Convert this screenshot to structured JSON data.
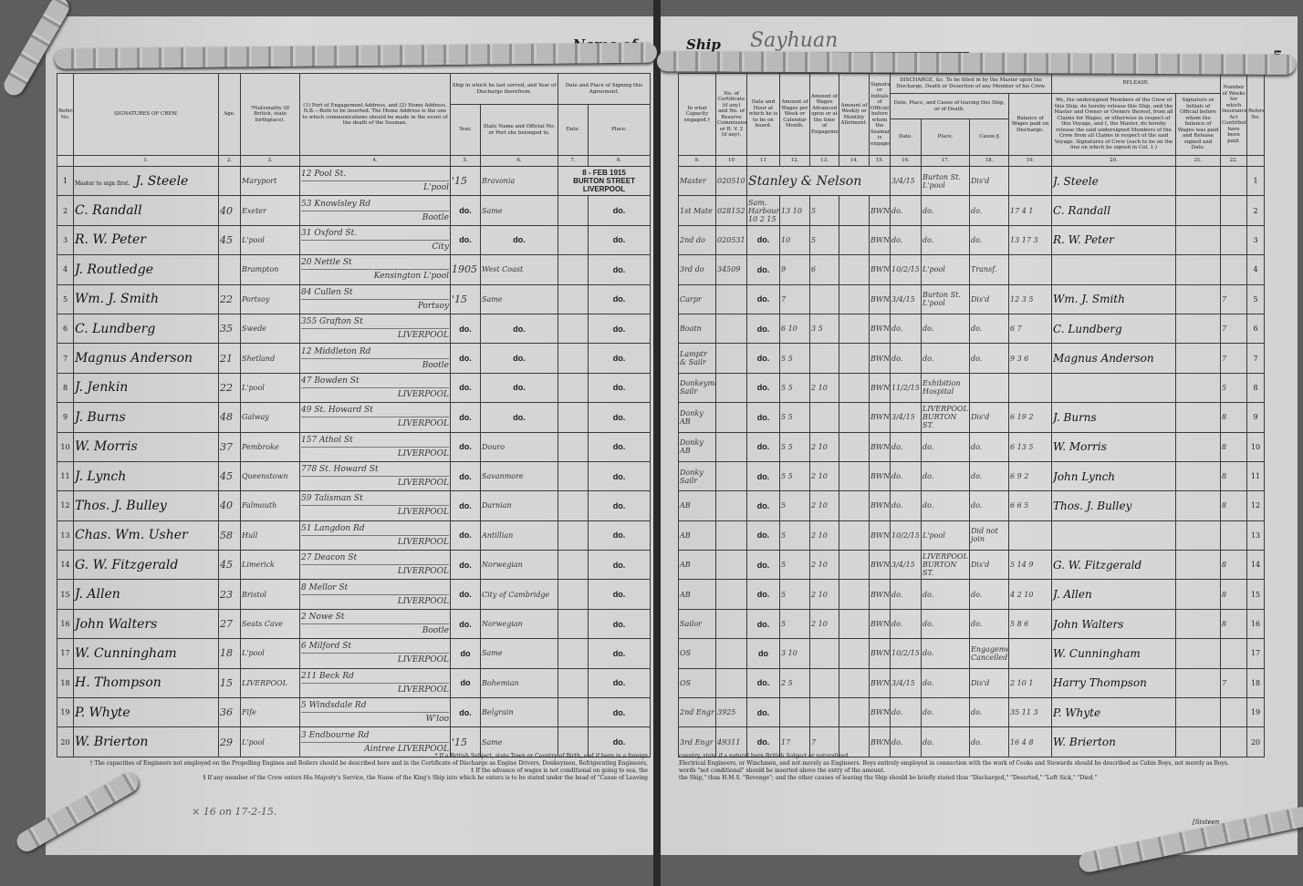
{
  "header": {
    "left_page_number": "4",
    "right_page_number": "5",
    "name_of_label": "Name of",
    "ship_label": "Ship",
    "ship_name": "Sayhuan"
  },
  "left_columns": {
    "ref": "Reference No.",
    "signatures": "SIGNATURES OF CREW.",
    "age": "Age.",
    "nationality": "*Nationality (If British, state birthplace).",
    "address": "(1) Port of Engagement Address, and (2) Home Address. N.B.—Both to be inserted. The Home Address is the one to which communications should be made in the event of the death of the Seaman.",
    "last_ship_group": "Ship in which he last served, and Year of Discharge therefrom.",
    "year": "Year.",
    "ship": "State Name and Official No. or Port she belonged to.",
    "signing_group": "Date and Place of Signing this Agreement.",
    "date": "Date.",
    "place": "Place.",
    "numbers": [
      "1.",
      "2.",
      "3.",
      "4.",
      "5.",
      "6.",
      "7.",
      "8."
    ]
  },
  "right_columns": {
    "capacity": "In what Capacity engaged.†",
    "certificate": "No. of Certificate (if any) and No. of Reserve Commission or R. V. 2 (if any).",
    "on_board": "Date and Hour at which he is to be on board.",
    "wages": "Amount of Wages per Week or Calendar Month.",
    "advance": "Amount of Wages Advanced upon or at the time of Engagement.‡",
    "allotment": "Amount of Weekly or Monthly Allotment.",
    "official": "Signature or Initials of Official before whom the Seaman is engaged.",
    "discharge_group": "DISCHARGE, &c. To be filled in by the Master upon the Discharge, Death or Desertion of any Member of his Crew.",
    "leaving_group": "Date, Place, and Cause of leaving this Ship, or of Death.",
    "leave_date": "Date.",
    "leave_place": "Place.",
    "leave_cause": "Cause.§",
    "balance": "Balance of Wages paid on Discharge.",
    "release_group": "RELEASE.",
    "release": "We, the undersigned Members of the Crew of this Ship, do hereby release this Ship, and the Master and Owner or Owners thereof, from all Claims for Wages, or otherwise in respect of this Voyage, and I, the Master, do hereby release the said undersigned Members of the Crew from all Claims in respect of the said Voyage. Signatures of Crew (each to be on the line on which he signed in Col. 1.)",
    "release_official": "Signature or Initials of Official before whom the balance of Wages was paid and Release signed and Date.",
    "weeks": "Number of Weeks for which Insurance Act Contributions have been paid.",
    "ref": "Reference No.",
    "numbers": [
      "9.",
      "10",
      "11",
      "12.",
      "13.",
      "14.",
      "15.",
      "16.",
      "17.",
      "18.",
      "19.",
      "20.",
      "21.",
      "22."
    ]
  },
  "master_note": "Master to sign first.",
  "owners_note": "Stanley & Nelson",
  "crew_left": [
    {
      "ref": "1",
      "signature": "J. Steele",
      "age": "",
      "nationality": "Maryport",
      "address1": "12 Pool St.",
      "address2": "L'pool",
      "year": "'15",
      "ship": "Bravonia",
      "date": "8 - FEB 1915",
      "place": "BURTON STREET LIVERPOOL"
    },
    {
      "ref": "2",
      "signature": "C. Randall",
      "age": "40",
      "nationality": "Exeter",
      "address1": "53 Knowlsley Rd",
      "address2": "Bootle",
      "year": "do.",
      "ship": "Same",
      "date": "",
      "place": "do."
    },
    {
      "ref": "3",
      "signature": "R. W. Peter",
      "age": "45",
      "nationality": "L'pool",
      "address1": "31 Oxford St.",
      "address2": "City",
      "year": "do.",
      "ship": "do.",
      "date": "",
      "place": "do."
    },
    {
      "ref": "4",
      "signature": "J. Routledge",
      "age": "",
      "nationality": "Brampton",
      "address1": "20 Nettle St",
      "address2": "Kensington L'pool",
      "year": "1905",
      "ship": "West Coast",
      "date": "",
      "place": "do."
    },
    {
      "ref": "5",
      "signature": "Wm. J. Smith",
      "age": "22",
      "nationality": "Portsoy",
      "address1": "84 Cullen St",
      "address2": "Portsoy",
      "year": "'15",
      "ship": "Same",
      "date": "",
      "place": "do."
    },
    {
      "ref": "6",
      "signature": "C. Lundberg",
      "age": "35",
      "nationality": "Swede",
      "address1": "355 Grafton St",
      "address2": "LIVERPOOL",
      "year": "do.",
      "ship": "do.",
      "date": "",
      "place": "do."
    },
    {
      "ref": "7",
      "signature": "Magnus Anderson",
      "age": "21",
      "nationality": "Shetland",
      "address1": "12 Middleton Rd",
      "address2": "Bootle",
      "year": "do.",
      "ship": "do.",
      "date": "",
      "place": "do."
    },
    {
      "ref": "8",
      "signature": "J. Jenkin",
      "age": "22",
      "nationality": "L'pool",
      "address1": "47 Bowden St",
      "address2": "LIVERPOOL",
      "year": "do.",
      "ship": "do.",
      "date": "",
      "place": "do."
    },
    {
      "ref": "9",
      "signature": "J. Burns",
      "age": "48",
      "nationality": "Galway",
      "address1": "49 St. Howard St",
      "address2": "LIVERPOOL",
      "year": "do.",
      "ship": "do.",
      "date": "",
      "place": "do."
    },
    {
      "ref": "10",
      "signature": "W. Morris",
      "age": "37",
      "nationality": "Pembroke",
      "address1": "157 Athol St",
      "address2": "LIVERPOOL",
      "year": "do.",
      "ship": "Douro",
      "date": "",
      "place": "do."
    },
    {
      "ref": "11",
      "signature": "J. Lynch",
      "age": "45",
      "nationality": "Queenstown",
      "address1": "778 St. Howard St",
      "address2": "LIVERPOOL",
      "year": "do.",
      "ship": "Savanmore",
      "date": "",
      "place": "do."
    },
    {
      "ref": "12",
      "signature": "Thos. J. Bulley",
      "age": "40",
      "nationality": "Falmouth",
      "address1": "59 Talisman St",
      "address2": "LIVERPOOL",
      "year": "do.",
      "ship": "Darnian",
      "date": "",
      "place": "do."
    },
    {
      "ref": "13",
      "signature": "Chas. Wm. Usher",
      "age": "58",
      "nationality": "Hull",
      "address1": "51 Langdon Rd",
      "address2": "LIVERPOOL",
      "year": "do.",
      "ship": "Antillian",
      "date": "",
      "place": "do."
    },
    {
      "ref": "14",
      "signature": "G. W. Fitzgerald",
      "age": "45",
      "nationality": "Limerick",
      "address1": "27 Deacon St",
      "address2": "LIVERPOOL",
      "year": "do.",
      "ship": "Norwegian",
      "date": "",
      "place": "do."
    },
    {
      "ref": "15",
      "signature": "J. Allen",
      "age": "23",
      "nationality": "Bristol",
      "address1": "8 Mellor St",
      "address2": "LIVERPOOL",
      "year": "do.",
      "ship": "City of Cambridge",
      "date": "",
      "place": "do."
    },
    {
      "ref": "16",
      "signature": "John Walters",
      "age": "27",
      "nationality": "Seats Cave",
      "address1": "2 Nowe St",
      "address2": "Bootle",
      "year": "do.",
      "ship": "Norwegian",
      "date": "",
      "place": "do."
    },
    {
      "ref": "17",
      "signature": "W. Cunningham",
      "age": "18",
      "nationality": "L'pool",
      "address1": "6 Milford St",
      "address2": "LIVERPOOL",
      "year": "do",
      "ship": "Same",
      "date": "",
      "place": "do."
    },
    {
      "ref": "18",
      "signature": "H. Thompson",
      "age": "15",
      "nationality": "LIVERPOOL",
      "address1": "211 Beck Rd",
      "address2": "LIVERPOOL",
      "year": "do",
      "ship": "Bohemian",
      "date": "",
      "place": "do."
    },
    {
      "ref": "19",
      "signature": "P. Whyte",
      "age": "36",
      "nationality": "Fife",
      "address1": "5 Windsdale Rd",
      "address2": "W'loo",
      "year": "do.",
      "ship": "Belgrain",
      "date": "",
      "place": "do."
    },
    {
      "ref": "20",
      "signature": "W. Brierton",
      "age": "29",
      "nationality": "L'pool",
      "address1": "3 Endbourne Rd",
      "address2": "Aintree LIVERPOOL",
      "year": "'15",
      "ship": "Same",
      "date": "",
      "place": "do."
    }
  ],
  "crew_right": [
    {
      "capacity": "Master",
      "cert": "020510",
      "on_board": "",
      "wages": "",
      "advance": "",
      "allotment": "",
      "official": "",
      "leave_date": "3/4/15",
      "leave_place": "Burton St. L'pool",
      "cause": "Dis'd",
      "balance": "",
      "release_sig": "J. Steele",
      "release_official": "",
      "weeks": "",
      "ref": "1"
    },
    {
      "capacity": "1st Mate",
      "cert": "028152",
      "on_board": "Sam. Harbour 10 2 15",
      "wages": "13 10",
      "advance": "5",
      "allotment": "",
      "official": "BWN",
      "leave_date": "do.",
      "leave_place": "do.",
      "cause": "do.",
      "balance": "17 4 1",
      "release_sig": "C. Randall",
      "release_official": "",
      "weeks": "",
      "ref": "2"
    },
    {
      "capacity": "2nd do",
      "cert": "020531",
      "on_board": "do.",
      "wages": "10",
      "advance": "5",
      "allotment": "",
      "official": "BWN",
      "leave_date": "do.",
      "leave_place": "do.",
      "cause": "do.",
      "balance": "13 17 3",
      "release_sig": "R. W. Peter",
      "release_official": "",
      "weeks": "",
      "ref": "3"
    },
    {
      "capacity": "3rd do",
      "cert": "34509",
      "on_board": "do.",
      "wages": "9",
      "advance": "6",
      "allotment": "",
      "official": "BWN",
      "leave_date": "10/2/15",
      "leave_place": "L'pool",
      "cause": "Transf.",
      "balance": "",
      "release_sig": "",
      "release_official": "",
      "weeks": "",
      "ref": "4"
    },
    {
      "capacity": "Carpr",
      "cert": "",
      "on_board": "do.",
      "wages": "7",
      "advance": "",
      "allotment": "",
      "official": "BWN",
      "leave_date": "3/4/15",
      "leave_place": "Burton St. L'pool",
      "cause": "Dis'd",
      "balance": "12 3 5",
      "release_sig": "Wm. J. Smith",
      "release_official": "",
      "weeks": "7",
      "ref": "5"
    },
    {
      "capacity": "Boatn",
      "cert": "",
      "on_board": "do.",
      "wages": "6 10",
      "advance": "3 5",
      "allotment": "",
      "official": "BWN",
      "leave_date": "do.",
      "leave_place": "do.",
      "cause": "do.",
      "balance": "6 7",
      "release_sig": "C. Lundberg",
      "release_official": "",
      "weeks": "7",
      "ref": "6"
    },
    {
      "capacity": "Lamptr & Sailr",
      "cert": "",
      "on_board": "do.",
      "wages": "5 5",
      "advance": "",
      "allotment": "",
      "official": "BWN",
      "leave_date": "do.",
      "leave_place": "do.",
      "cause": "do.",
      "balance": "9 3 6",
      "release_sig": "Magnus Anderson",
      "release_official": "",
      "weeks": "7",
      "ref": "7"
    },
    {
      "capacity": "Donkeyman Sailr",
      "cert": "",
      "on_board": "do.",
      "wages": "5 5",
      "advance": "2 10",
      "allotment": "",
      "official": "BWN",
      "leave_date": "11/2/15",
      "leave_place": "Exhibition Hospital",
      "cause": "",
      "balance": "",
      "release_sig": "",
      "release_official": "",
      "weeks": "5",
      "ref": "8"
    },
    {
      "capacity": "Donky AB",
      "cert": "",
      "on_board": "do.",
      "wages": "5 5",
      "advance": "",
      "allotment": "",
      "official": "BWN",
      "leave_date": "3/4/15",
      "leave_place": "LIVERPOOL BURTON ST.",
      "cause": "Dis'd",
      "balance": "6 19 2",
      "release_sig": "J. Burns",
      "release_official": "",
      "weeks": "8",
      "ref": "9"
    },
    {
      "capacity": "Donky AB",
      "cert": "",
      "on_board": "do.",
      "wages": "5 5",
      "advance": "2 10",
      "allotment": "",
      "official": "BWN",
      "leave_date": "do.",
      "leave_place": "do.",
      "cause": "do.",
      "balance": "6 13 5",
      "release_sig": "W. Morris",
      "release_official": "",
      "weeks": "8",
      "ref": "10"
    },
    {
      "capacity": "Donky Sailr",
      "cert": "",
      "on_board": "do.",
      "wages": "5 5",
      "advance": "2 10",
      "allotment": "",
      "official": "BWN",
      "leave_date": "do.",
      "leave_place": "do.",
      "cause": "do.",
      "balance": "6 9 2",
      "release_sig": "John Lynch",
      "release_official": "",
      "weeks": "8",
      "ref": "11"
    },
    {
      "capacity": "AB",
      "cert": "",
      "on_board": "do.",
      "wages": "5",
      "advance": "2 10",
      "allotment": "",
      "official": "BWN",
      "leave_date": "do.",
      "leave_place": "do.",
      "cause": "do.",
      "balance": "6 6 5",
      "release_sig": "Thos. J. Bulley",
      "release_official": "",
      "weeks": "8",
      "ref": "12"
    },
    {
      "capacity": "AB",
      "cert": "",
      "on_board": "do.",
      "wages": "5",
      "advance": "2 10",
      "allotment": "",
      "official": "BWN",
      "leave_date": "10/2/15",
      "leave_place": "L'pool",
      "cause": "Did not join",
      "balance": "",
      "release_sig": "",
      "release_official": "",
      "weeks": "",
      "ref": "13"
    },
    {
      "capacity": "AB",
      "cert": "",
      "on_board": "do.",
      "wages": "5",
      "advance": "2 10",
      "allotment": "",
      "official": "BWN",
      "leave_date": "3/4/15",
      "leave_place": "LIVERPOOL BURTON ST.",
      "cause": "Dis'd",
      "balance": "5 14 9",
      "release_sig": "G. W. Fitzgerald",
      "release_official": "",
      "weeks": "8",
      "ref": "14"
    },
    {
      "capacity": "AB",
      "cert": "",
      "on_board": "do.",
      "wages": "5",
      "advance": "2 10",
      "allotment": "",
      "official": "BWN",
      "leave_date": "do.",
      "leave_place": "do.",
      "cause": "do.",
      "balance": "4 2 10",
      "release_sig": "J. Allen",
      "release_official": "",
      "weeks": "8",
      "ref": "15"
    },
    {
      "capacity": "Sailor",
      "cert": "",
      "on_board": "do.",
      "wages": "5",
      "advance": "2 10",
      "allotment": "",
      "official": "BWN",
      "leave_date": "do.",
      "leave_place": "do.",
      "cause": "do.",
      "balance": "5 8 6",
      "release_sig": "John Walters",
      "release_official": "",
      "weeks": "8",
      "ref": "16"
    },
    {
      "capacity": "OS",
      "cert": "",
      "on_board": "do",
      "wages": "3 10",
      "advance": "",
      "allotment": "",
      "official": "BWN",
      "leave_date": "10/2/15",
      "leave_place": "do.",
      "cause": "Engagement Cancelled",
      "balance": "",
      "release_sig": "W. Cunningham",
      "release_official": "",
      "weeks": "",
      "ref": "17"
    },
    {
      "capacity": "OS",
      "cert": "",
      "on_board": "do.",
      "wages": "2 5",
      "advance": "",
      "allotment": "",
      "official": "BWN",
      "leave_date": "3/4/15",
      "leave_place": "do.",
      "cause": "Dis'd",
      "balance": "2 10 1",
      "release_sig": "Harry Thompson",
      "release_official": "",
      "weeks": "7",
      "ref": "18"
    },
    {
      "capacity": "2nd Engr",
      "cert": "3925",
      "on_board": "do.",
      "wages": "",
      "advance": "",
      "allotment": "",
      "official": "BWN",
      "leave_date": "do.",
      "leave_place": "do.",
      "cause": "do.",
      "balance": "35 11 3",
      "release_sig": "P. Whyte",
      "release_official": "",
      "weeks": "",
      "ref": "19"
    },
    {
      "capacity": "3rd Engr",
      "cert": "49311",
      "on_board": "do.",
      "wages": "17",
      "advance": "7",
      "allotment": "",
      "official": "BWN",
      "leave_date": "do.",
      "leave_place": "do.",
      "cause": "do.",
      "balance": "16 4 8",
      "release_sig": "W. Brierton",
      "release_official": "",
      "weeks": "",
      "ref": "20"
    }
  ],
  "footnotes_left": [
    "* If a British Subject, state Town or Country of Birth, and if born in a foreign",
    "† The capacities of Engineers not employed on the Propelling Engines and Boilers should be described here and in the Certificate of Discharge as Engine Drivers, Donkeymen, Refrigerating Engineers,",
    "‡ If the advance of wages is not conditional on going to sea, the",
    "§ If any member of the Crew enters His Majesty's Service, the Name of the King's Ship into which he enters is to be stated under the head of \"Cause of Leaving"
  ],
  "footnotes_right": [
    "country, state if a natural born British Subject or naturalized.",
    "Electrical Engineers, or Winchmen, and not merely as Engineers. Boys entirely employed in connection with the work of Cooks and Stewards should be described as Cabin Boys, not merely as Boys.",
    "words \"not conditional\" should be inserted above the entry of the amount.",
    "the Ship,\" thus H.M.S. \"Revenge\"; and the other causes of leaving the Ship should be briefly stated thus \"Discharged,\" \"Deserted,\" \"Left Sick,\" \"Died.\""
  ],
  "handwritten_note": "× 16 on 17-2-15.",
  "sheet_label": "[Sixteen"
}
